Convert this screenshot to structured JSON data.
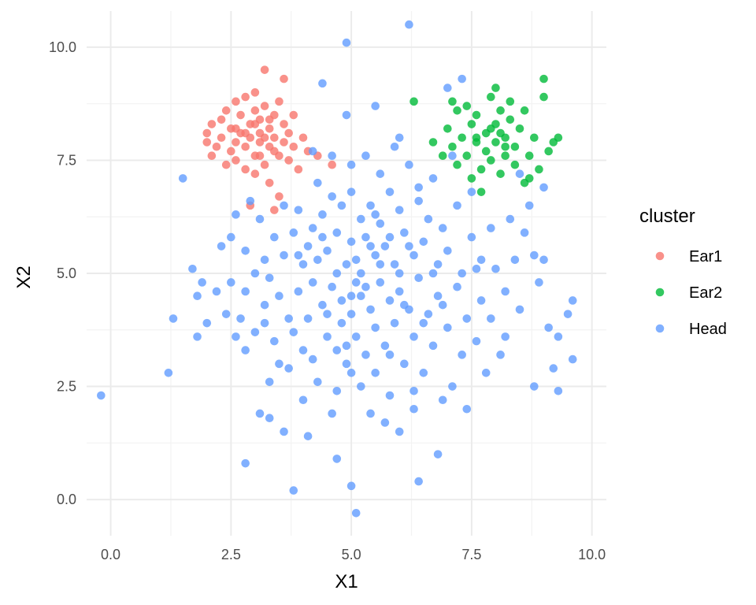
{
  "chart_data": {
    "type": "scatter",
    "title": "",
    "xlabel": "X1",
    "ylabel": "X2",
    "xlim": [
      -0.5,
      10.3
    ],
    "ylim": [
      -0.8,
      10.8
    ],
    "x_ticks": [
      0.0,
      2.5,
      5.0,
      7.5,
      10.0
    ],
    "x_tick_labels": [
      "0.0",
      "2.5",
      "5.0",
      "7.5",
      "10.0"
    ],
    "y_ticks": [
      0.0,
      2.5,
      5.0,
      7.5,
      10.0
    ],
    "y_tick_labels": [
      "0.0",
      "2.5",
      "5.0",
      "7.5",
      "10.0"
    ],
    "grid": true,
    "legend": {
      "title": "cluster",
      "position": "right"
    },
    "series": [
      {
        "name": "Ear1",
        "color": "#F8766D",
        "points": [
          [
            2.0,
            7.9
          ],
          [
            2.0,
            8.1
          ],
          [
            2.1,
            8.3
          ],
          [
            2.1,
            7.6
          ],
          [
            2.2,
            7.8
          ],
          [
            2.3,
            8.4
          ],
          [
            2.3,
            8.0
          ],
          [
            2.4,
            8.6
          ],
          [
            2.4,
            7.4
          ],
          [
            2.5,
            8.2
          ],
          [
            2.5,
            7.7
          ],
          [
            2.6,
            8.8
          ],
          [
            2.6,
            7.9
          ],
          [
            2.6,
            7.5
          ],
          [
            2.7,
            8.5
          ],
          [
            2.7,
            8.1
          ],
          [
            2.8,
            8.9
          ],
          [
            2.8,
            7.8
          ],
          [
            2.8,
            7.3
          ],
          [
            2.9,
            8.3
          ],
          [
            2.9,
            8.0
          ],
          [
            3.0,
            9.0
          ],
          [
            3.0,
            8.6
          ],
          [
            3.0,
            7.6
          ],
          [
            3.0,
            7.2
          ],
          [
            3.1,
            8.4
          ],
          [
            3.1,
            8.1
          ],
          [
            3.1,
            7.9
          ],
          [
            3.2,
            9.5
          ],
          [
            3.2,
            8.7
          ],
          [
            3.2,
            7.4
          ],
          [
            3.3,
            8.2
          ],
          [
            3.3,
            7.8
          ],
          [
            3.3,
            7.0
          ],
          [
            3.4,
            8.5
          ],
          [
            3.4,
            8.0
          ],
          [
            3.5,
            8.8
          ],
          [
            3.5,
            7.6
          ],
          [
            3.5,
            6.7
          ],
          [
            3.6,
            8.3
          ],
          [
            3.6,
            7.9
          ],
          [
            3.6,
            9.3
          ],
          [
            3.7,
            8.1
          ],
          [
            3.7,
            7.5
          ],
          [
            3.8,
            8.5
          ],
          [
            3.8,
            7.8
          ],
          [
            3.9,
            7.3
          ],
          [
            4.0,
            8.0
          ],
          [
            4.1,
            7.7
          ],
          [
            4.3,
            7.6
          ],
          [
            4.6,
            7.4
          ],
          [
            2.9,
            6.5
          ],
          [
            3.4,
            6.4
          ],
          [
            2.6,
            8.2
          ],
          [
            3.0,
            8.3
          ],
          [
            3.2,
            8.0
          ],
          [
            3.4,
            7.7
          ],
          [
            2.8,
            8.1
          ],
          [
            3.1,
            7.6
          ],
          [
            3.3,
            8.4
          ]
        ]
      },
      {
        "name": "Ear2",
        "color": "#00BA38",
        "points": [
          [
            6.3,
            8.8
          ],
          [
            6.7,
            7.9
          ],
          [
            6.9,
            7.6
          ],
          [
            7.0,
            8.2
          ],
          [
            7.1,
            7.8
          ],
          [
            7.2,
            8.6
          ],
          [
            7.2,
            7.4
          ],
          [
            7.3,
            8.0
          ],
          [
            7.4,
            8.7
          ],
          [
            7.4,
            7.6
          ],
          [
            7.5,
            8.3
          ],
          [
            7.5,
            7.1
          ],
          [
            7.6,
            7.9
          ],
          [
            7.6,
            8.5
          ],
          [
            7.7,
            7.3
          ],
          [
            7.7,
            6.8
          ],
          [
            7.8,
            8.1
          ],
          [
            7.8,
            7.7
          ],
          [
            7.9,
            8.9
          ],
          [
            7.9,
            7.5
          ],
          [
            8.0,
            9.1
          ],
          [
            8.0,
            8.3
          ],
          [
            8.0,
            7.9
          ],
          [
            8.1,
            8.6
          ],
          [
            8.1,
            7.2
          ],
          [
            8.2,
            8.0
          ],
          [
            8.2,
            7.6
          ],
          [
            8.3,
            8.8
          ],
          [
            8.3,
            8.4
          ],
          [
            8.4,
            7.8
          ],
          [
            8.4,
            7.4
          ],
          [
            8.5,
            8.2
          ],
          [
            8.6,
            7.0
          ],
          [
            8.6,
            8.6
          ],
          [
            8.7,
            7.6
          ],
          [
            8.8,
            8.0
          ],
          [
            8.9,
            7.3
          ],
          [
            9.0,
            9.3
          ],
          [
            9.0,
            8.9
          ],
          [
            9.1,
            7.7
          ],
          [
            9.2,
            7.9
          ],
          [
            9.3,
            8.0
          ],
          [
            7.1,
            8.8
          ],
          [
            7.9,
            8.2
          ],
          [
            8.1,
            8.1
          ],
          [
            7.6,
            8.0
          ],
          [
            8.2,
            7.8
          ],
          [
            8.7,
            7.1
          ]
        ]
      },
      {
        "name": "Head",
        "color": "#619CFF",
        "points": [
          [
            -0.2,
            2.3
          ],
          [
            1.2,
            2.8
          ],
          [
            1.3,
            4.0
          ],
          [
            1.5,
            7.1
          ],
          [
            1.7,
            5.1
          ],
          [
            1.8,
            3.6
          ],
          [
            1.8,
            4.5
          ],
          [
            1.9,
            4.8
          ],
          [
            2.0,
            3.9
          ],
          [
            2.2,
            4.6
          ],
          [
            2.3,
            5.6
          ],
          [
            2.4,
            4.1
          ],
          [
            2.5,
            5.8
          ],
          [
            2.5,
            4.8
          ],
          [
            2.6,
            6.3
          ],
          [
            2.6,
            3.6
          ],
          [
            2.7,
            4.0
          ],
          [
            2.8,
            3.3
          ],
          [
            2.8,
            4.6
          ],
          [
            2.8,
            5.5
          ],
          [
            2.8,
            0.8
          ],
          [
            2.9,
            6.6
          ],
          [
            3.0,
            3.7
          ],
          [
            3.0,
            5.0
          ],
          [
            3.1,
            6.2
          ],
          [
            3.1,
            1.9
          ],
          [
            3.2,
            4.3
          ],
          [
            3.2,
            3.9
          ],
          [
            3.2,
            5.3
          ],
          [
            3.3,
            2.6
          ],
          [
            3.3,
            4.9
          ],
          [
            3.3,
            1.8
          ],
          [
            3.4,
            5.8
          ],
          [
            3.4,
            3.5
          ],
          [
            3.5,
            4.5
          ],
          [
            3.5,
            3.0
          ],
          [
            3.6,
            1.5
          ],
          [
            3.6,
            5.4
          ],
          [
            3.7,
            4.0
          ],
          [
            3.7,
            2.9
          ],
          [
            3.8,
            5.9
          ],
          [
            3.8,
            0.2
          ],
          [
            3.8,
            3.7
          ],
          [
            3.9,
            4.6
          ],
          [
            3.9,
            6.4
          ],
          [
            4.0,
            5.2
          ],
          [
            4.0,
            3.3
          ],
          [
            4.0,
            2.2
          ],
          [
            4.1,
            4.0
          ],
          [
            4.1,
            5.6
          ],
          [
            4.1,
            1.4
          ],
          [
            4.2,
            6.0
          ],
          [
            4.2,
            4.8
          ],
          [
            4.2,
            3.1
          ],
          [
            4.3,
            7.0
          ],
          [
            4.3,
            5.3
          ],
          [
            4.3,
            2.6
          ],
          [
            4.4,
            4.3
          ],
          [
            4.4,
            9.2
          ],
          [
            4.4,
            6.3
          ],
          [
            4.5,
            3.6
          ],
          [
            4.5,
            5.5
          ],
          [
            4.6,
            4.7
          ],
          [
            4.6,
            6.7
          ],
          [
            4.6,
            1.9
          ],
          [
            4.7,
            3.3
          ],
          [
            4.7,
            5.9
          ],
          [
            4.7,
            2.4
          ],
          [
            4.7,
            0.9
          ],
          [
            4.8,
            4.4
          ],
          [
            4.8,
            6.5
          ],
          [
            4.8,
            3.9
          ],
          [
            4.9,
            10.1
          ],
          [
            4.9,
            8.5
          ],
          [
            4.9,
            5.2
          ],
          [
            4.9,
            3.4
          ],
          [
            5.0,
            5.7
          ],
          [
            5.0,
            4.1
          ],
          [
            5.0,
            2.8
          ],
          [
            5.0,
            0.3
          ],
          [
            5.0,
            6.8
          ],
          [
            5.1,
            -0.3
          ],
          [
            5.1,
            5.3
          ],
          [
            5.1,
            3.6
          ],
          [
            5.2,
            4.5
          ],
          [
            5.2,
            6.2
          ],
          [
            5.2,
            5.0
          ],
          [
            5.3,
            7.6
          ],
          [
            5.3,
            3.2
          ],
          [
            5.3,
            5.8
          ],
          [
            5.4,
            4.2
          ],
          [
            5.4,
            1.9
          ],
          [
            5.4,
            6.5
          ],
          [
            5.5,
            5.4
          ],
          [
            5.5,
            3.8
          ],
          [
            5.5,
            8.7
          ],
          [
            5.5,
            2.8
          ],
          [
            5.6,
            4.8
          ],
          [
            5.6,
            6.1
          ],
          [
            5.6,
            7.2
          ],
          [
            5.7,
            3.4
          ],
          [
            5.7,
            5.6
          ],
          [
            5.7,
            1.7
          ],
          [
            5.8,
            4.4
          ],
          [
            5.8,
            6.8
          ],
          [
            5.8,
            2.3
          ],
          [
            5.9,
            5.2
          ],
          [
            5.9,
            3.9
          ],
          [
            6.0,
            6.4
          ],
          [
            6.0,
            8.0
          ],
          [
            6.0,
            4.6
          ],
          [
            6.0,
            1.5
          ],
          [
            6.1,
            5.9
          ],
          [
            6.1,
            3.0
          ],
          [
            6.2,
            4.2
          ],
          [
            6.2,
            7.4
          ],
          [
            6.2,
            10.5
          ],
          [
            6.3,
            5.4
          ],
          [
            6.3,
            2.4
          ],
          [
            6.3,
            3.6
          ],
          [
            6.4,
            6.6
          ],
          [
            6.4,
            0.4
          ],
          [
            6.4,
            4.9
          ],
          [
            6.5,
            5.7
          ],
          [
            6.5,
            2.8
          ],
          [
            6.6,
            4.1
          ],
          [
            6.6,
            6.2
          ],
          [
            6.7,
            3.4
          ],
          [
            6.7,
            7.1
          ],
          [
            6.8,
            5.2
          ],
          [
            6.8,
            1.0
          ],
          [
            6.8,
            4.5
          ],
          [
            6.9,
            6.0
          ],
          [
            6.9,
            2.2
          ],
          [
            7.0,
            9.1
          ],
          [
            7.0,
            3.8
          ],
          [
            7.0,
            5.5
          ],
          [
            7.1,
            7.6
          ],
          [
            7.1,
            2.5
          ],
          [
            7.2,
            4.7
          ],
          [
            7.2,
            6.5
          ],
          [
            7.3,
            3.2
          ],
          [
            7.3,
            5.0
          ],
          [
            7.3,
            9.3
          ],
          [
            7.4,
            4.0
          ],
          [
            7.4,
            2.0
          ],
          [
            7.5,
            5.8
          ],
          [
            7.5,
            6.8
          ],
          [
            7.6,
            3.5
          ],
          [
            7.7,
            4.4
          ],
          [
            7.7,
            5.3
          ],
          [
            7.8,
            2.8
          ],
          [
            7.9,
            6.0
          ],
          [
            7.9,
            4.0
          ],
          [
            8.0,
            5.1
          ],
          [
            8.1,
            3.2
          ],
          [
            8.2,
            4.6
          ],
          [
            8.2,
            3.6
          ],
          [
            8.3,
            6.2
          ],
          [
            8.4,
            5.3
          ],
          [
            8.5,
            4.2
          ],
          [
            8.6,
            5.9
          ],
          [
            8.7,
            6.5
          ],
          [
            8.8,
            5.4
          ],
          [
            8.8,
            2.5
          ],
          [
            8.9,
            4.8
          ],
          [
            9.0,
            5.3
          ],
          [
            9.1,
            3.8
          ],
          [
            9.2,
            2.9
          ],
          [
            9.3,
            2.4
          ],
          [
            9.3,
            3.6
          ],
          [
            9.5,
            4.1
          ],
          [
            9.6,
            4.4
          ],
          [
            9.6,
            3.1
          ],
          [
            9.0,
            6.9
          ],
          [
            8.5,
            7.2
          ],
          [
            6.4,
            6.9
          ],
          [
            5.9,
            7.8
          ],
          [
            5.0,
            7.4
          ],
          [
            4.6,
            7.6
          ],
          [
            4.2,
            7.7
          ],
          [
            3.6,
            6.5
          ],
          [
            3.9,
            5.4
          ],
          [
            4.5,
            4.1
          ],
          [
            5.3,
            4.7
          ],
          [
            5.8,
            5.8
          ],
          [
            6.1,
            4.3
          ],
          [
            6.7,
            5.0
          ],
          [
            5.5,
            6.3
          ],
          [
            5.0,
            4.5
          ],
          [
            4.4,
            5.8
          ],
          [
            6.5,
            3.9
          ],
          [
            6.9,
            4.3
          ],
          [
            7.6,
            5.1
          ],
          [
            5.2,
            2.5
          ],
          [
            5.8,
            3.2
          ],
          [
            6.3,
            2.0
          ],
          [
            4.9,
            3.0
          ],
          [
            6.0,
            5.0
          ],
          [
            5.6,
            5.2
          ],
          [
            5.4,
            5.6
          ],
          [
            6.2,
            5.6
          ],
          [
            4.7,
            5.0
          ],
          [
            5.1,
            4.8
          ]
        ]
      }
    ]
  }
}
